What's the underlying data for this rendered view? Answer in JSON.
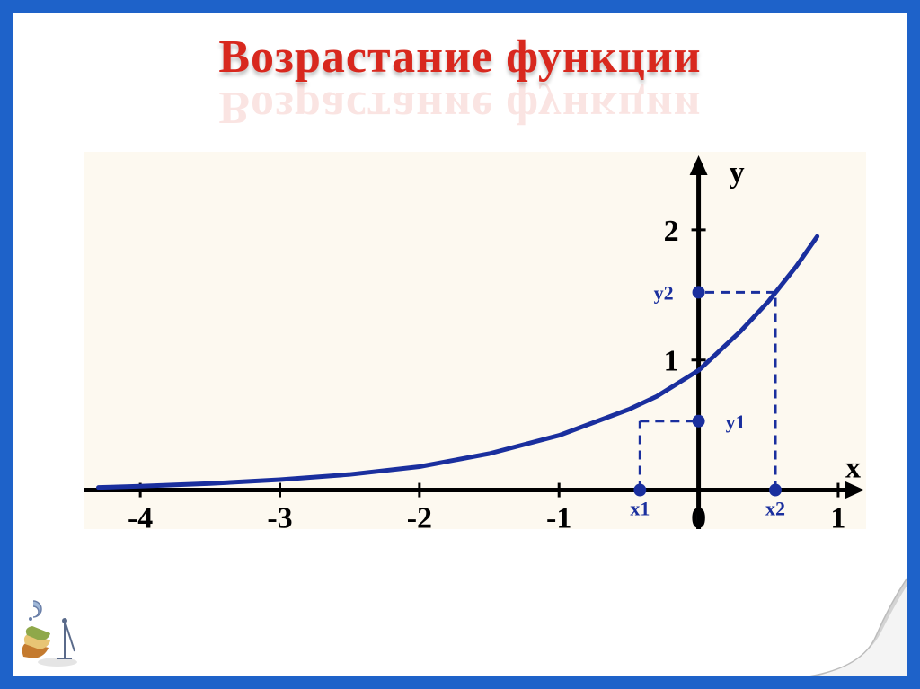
{
  "title": "Возрастание функции",
  "chart": {
    "type": "line",
    "background_color": "#fdf9f0",
    "curve_color": "#1a2f9e",
    "axis_color": "#000000",
    "dash_color": "#1a2f9e",
    "dot_color": "#1a2f9e",
    "curve_width": 5,
    "axis_width": 5,
    "dash_width": 3,
    "x_axis": {
      "label": "x",
      "min": -4.4,
      "max": 1.2,
      "ticks": [
        -4,
        -3,
        -2,
        -1,
        0,
        1
      ]
    },
    "y_axis": {
      "label": "y",
      "min": -0.3,
      "max": 2.6,
      "ticks": [
        1,
        2
      ]
    },
    "tick_font_size": 34,
    "axis_label_font_size": 34,
    "annotation_font_size": 22,
    "curve_points": [
      [
        -4.3,
        0.02
      ],
      [
        -4,
        0.03
      ],
      [
        -3.5,
        0.05
      ],
      [
        -3,
        0.08
      ],
      [
        -2.5,
        0.12
      ],
      [
        -2,
        0.18
      ],
      [
        -1.5,
        0.28
      ],
      [
        -1,
        0.42
      ],
      [
        -0.5,
        0.62
      ],
      [
        -0.3,
        0.72
      ],
      [
        0,
        0.92
      ],
      [
        0.3,
        1.22
      ],
      [
        0.5,
        1.45
      ],
      [
        0.7,
        1.72
      ],
      [
        0.85,
        1.95
      ]
    ],
    "points": {
      "x1": {
        "x": -0.42,
        "y": 0.53,
        "label": "x1",
        "value_label": "y1"
      },
      "x2": {
        "x": 0.55,
        "y": 1.52,
        "label": "x2",
        "value_label": "y2"
      }
    }
  },
  "frame_color": "#1e62c9",
  "title_color": "#d8281e"
}
